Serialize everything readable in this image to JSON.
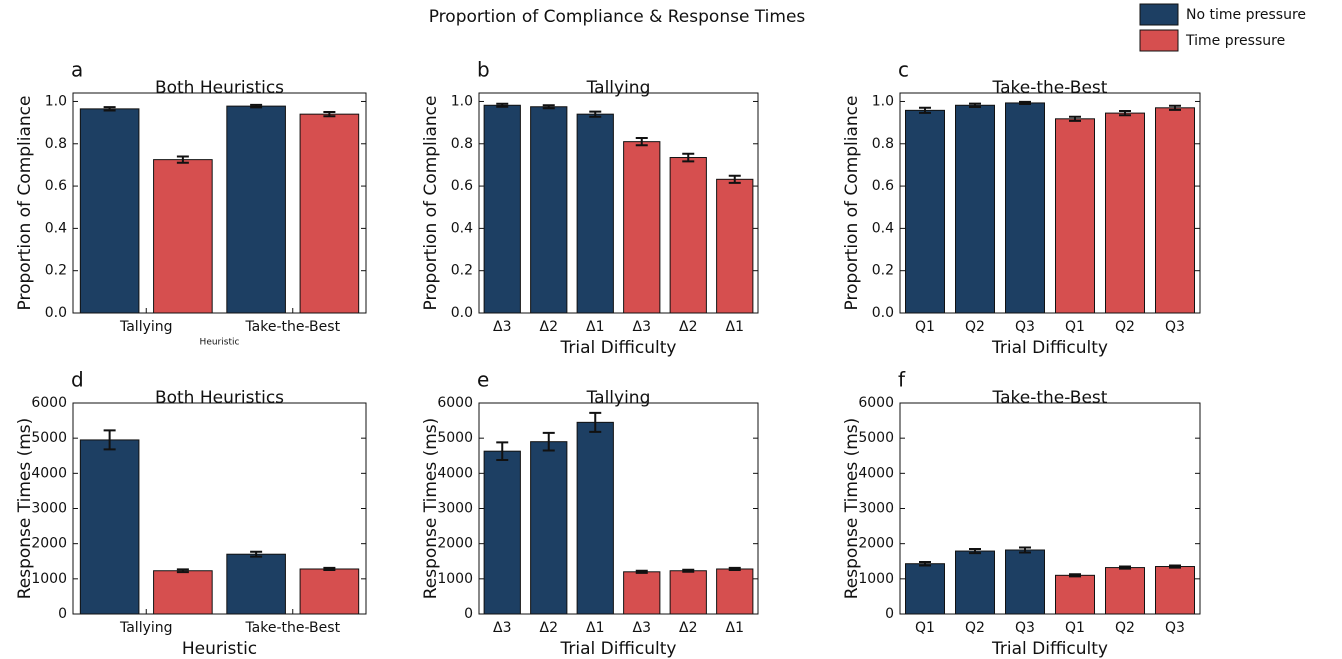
{
  "title": "Proportion of Compliance & Response Times",
  "legend": {
    "position": "upper right",
    "entries": [
      {
        "name": "No time pressure",
        "color": "#1d3f63"
      },
      {
        "name": "Time pressure",
        "color": "#d64f4f"
      }
    ]
  },
  "chart_data": [
    {
      "type": "bar",
      "label": "a",
      "title": "Both Heuristics",
      "ylabel": "Proportion of Compliance",
      "xlabel": "Heuristic",
      "xlabel_size": "tiny",
      "categories": [
        "Tallying",
        "Take-the-Best"
      ],
      "series": [
        {
          "values": [
            0.965,
            0.978
          ],
          "errors": [
            0.008,
            0.006
          ]
        },
        {
          "values": [
            0.725,
            0.94
          ],
          "errors": [
            0.015,
            0.01
          ]
        }
      ],
      "ylim": [
        0,
        1.04
      ],
      "yticks": [
        {
          "value": 0,
          "label": "0.0"
        },
        {
          "value": 0.2,
          "label": "0.2"
        },
        {
          "value": 0.4,
          "label": "0.4"
        },
        {
          "value": 0.6,
          "label": "0.6"
        },
        {
          "value": 0.8,
          "label": "0.8"
        },
        {
          "value": 1,
          "label": "1.0"
        }
      ]
    },
    {
      "type": "bar",
      "label": "b",
      "title": "Tallying",
      "ylabel": "Proportion of Compliance",
      "xlabel": "Trial Difficulty",
      "categories": [
        "Δ3",
        "Δ2",
        "Δ1",
        "Δ3",
        "Δ2",
        "Δ1"
      ],
      "series": [
        {
          "values": [
            0.982,
            0.975,
            0.94,
            null,
            null,
            null
          ],
          "errors": [
            0.007,
            0.007,
            0.012,
            null,
            null,
            null
          ]
        },
        {
          "values": [
            null,
            null,
            null,
            0.81,
            0.735,
            0.632
          ],
          "errors": [
            null,
            null,
            null,
            0.017,
            0.018,
            0.017
          ]
        }
      ],
      "ylim": [
        0,
        1.04
      ],
      "yticks": [
        {
          "value": 0,
          "label": "0.0"
        },
        {
          "value": 0.2,
          "label": "0.2"
        },
        {
          "value": 0.4,
          "label": "0.4"
        },
        {
          "value": 0.6,
          "label": "0.6"
        },
        {
          "value": 0.8,
          "label": "0.8"
        },
        {
          "value": 1,
          "label": "1.0"
        }
      ]
    },
    {
      "type": "bar",
      "label": "c",
      "title": "Take-the-Best",
      "ylabel": "Proportion of Compliance",
      "xlabel": "Trial Difficulty",
      "categories": [
        "Q1",
        "Q2",
        "Q3",
        "Q1",
        "Q2",
        "Q3"
      ],
      "series": [
        {
          "values": [
            0.958,
            0.982,
            0.993,
            null,
            null,
            null
          ],
          "errors": [
            0.012,
            0.008,
            0.005,
            null,
            null,
            null
          ]
        },
        {
          "values": [
            null,
            null,
            null,
            0.918,
            0.945,
            0.97
          ],
          "errors": [
            null,
            null,
            null,
            0.01,
            0.01,
            0.01
          ]
        }
      ],
      "ylim": [
        0,
        1.04
      ],
      "yticks": [
        {
          "value": 0,
          "label": "0.0"
        },
        {
          "value": 0.2,
          "label": "0.2"
        },
        {
          "value": 0.4,
          "label": "0.4"
        },
        {
          "value": 0.6,
          "label": "0.6"
        },
        {
          "value": 0.8,
          "label": "0.8"
        },
        {
          "value": 1,
          "label": "1.0"
        }
      ]
    },
    {
      "type": "bar",
      "label": "d",
      "title": "Both Heuristics",
      "ylabel": "Response Times (ms)",
      "xlabel": "Heuristic",
      "categories": [
        "Tallying",
        "Take-the-Best"
      ],
      "series": [
        {
          "values": [
            4950,
            1700
          ],
          "errors": [
            270,
            70
          ]
        },
        {
          "values": [
            1230,
            1280
          ],
          "errors": [
            40,
            30
          ]
        }
      ],
      "ylim": [
        0,
        6000
      ],
      "yticks": [
        0,
        1000,
        2000,
        3000,
        4000,
        5000,
        6000
      ]
    },
    {
      "type": "bar",
      "label": "e",
      "title": "Tallying",
      "ylabel": "Response Times (ms)",
      "xlabel": "Trial Difficulty",
      "categories": [
        "Δ3",
        "Δ2",
        "Δ1",
        "Δ3",
        "Δ2",
        "Δ1"
      ],
      "series": [
        {
          "values": [
            4630,
            4900,
            5450,
            null,
            null,
            null
          ],
          "errors": [
            250,
            250,
            270,
            null,
            null,
            null
          ]
        },
        {
          "values": [
            null,
            null,
            null,
            1200,
            1230,
            1280
          ],
          "errors": [
            null,
            null,
            null,
            30,
            30,
            30
          ]
        }
      ],
      "ylim": [
        0,
        6000
      ],
      "yticks": [
        0,
        1000,
        2000,
        3000,
        4000,
        5000,
        6000
      ]
    },
    {
      "type": "bar",
      "label": "f",
      "title": "Take-the-Best",
      "ylabel": "Response Times (ms)",
      "xlabel": "Trial Difficulty",
      "categories": [
        "Q1",
        "Q2",
        "Q3",
        "Q1",
        "Q2",
        "Q3"
      ],
      "series": [
        {
          "values": [
            1430,
            1790,
            1820,
            null,
            null,
            null
          ],
          "errors": [
            50,
            60,
            70,
            null,
            null,
            null
          ]
        },
        {
          "values": [
            null,
            null,
            null,
            1100,
            1320,
            1350
          ],
          "errors": [
            null,
            null,
            null,
            30,
            30,
            30
          ]
        }
      ],
      "ylim": [
        0,
        6000
      ],
      "yticks": [
        0,
        1000,
        2000,
        3000,
        4000,
        5000,
        6000
      ]
    }
  ]
}
